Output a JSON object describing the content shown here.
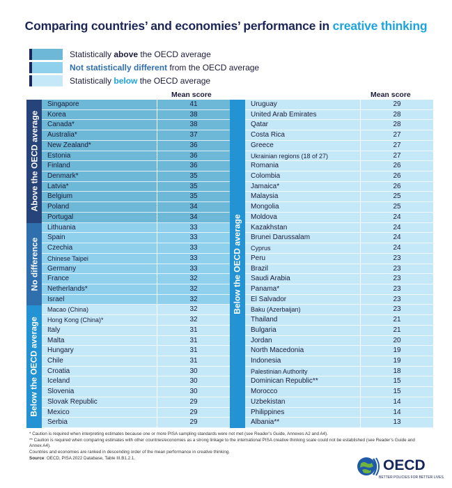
{
  "title": {
    "main": "Comparing countries’ and economies’ performance in ",
    "highlight": "creative thinking"
  },
  "legend": [
    {
      "pre": "Statistically ",
      "bold": "above",
      "post": " the OECD average",
      "color": "#6cb8d6"
    },
    {
      "pre": "",
      "bold": "Not statistically different",
      "post": " from the OECD average",
      "color": "#8fd0ec"
    },
    {
      "pre": "Statistically ",
      "bold": "below",
      "post": " the OECD average",
      "color": "#c4e8f7"
    }
  ],
  "column_header": "Mean score",
  "groups": {
    "above": "Above the OECD average",
    "nodiff": "No difference",
    "below": "Below the OECD average"
  },
  "chart_data": {
    "type": "table",
    "columns": [
      "Country/economy",
      "Mean score"
    ],
    "left": [
      {
        "name": "Singapore",
        "value": 41,
        "group": "above"
      },
      {
        "name": "Korea",
        "value": 38,
        "group": "above"
      },
      {
        "name": "Canada*",
        "value": 38,
        "group": "above"
      },
      {
        "name": "Australia*",
        "value": 37,
        "group": "above"
      },
      {
        "name": "New Zealand*",
        "value": 36,
        "group": "above"
      },
      {
        "name": "Estonia",
        "value": 36,
        "group": "above"
      },
      {
        "name": "Finland",
        "value": 36,
        "group": "above"
      },
      {
        "name": "Denmark*",
        "value": 35,
        "group": "above"
      },
      {
        "name": "Latvia*",
        "value": 35,
        "group": "above"
      },
      {
        "name": "Belgium",
        "value": 35,
        "group": "above"
      },
      {
        "name": "Poland",
        "value": 34,
        "group": "above"
      },
      {
        "name": "Portugal",
        "value": 34,
        "group": "above"
      },
      {
        "name": "Lithuania",
        "value": 33,
        "group": "nodiff"
      },
      {
        "name": "Spain",
        "value": 33,
        "group": "nodiff"
      },
      {
        "name": "Czechia",
        "value": 33,
        "group": "nodiff"
      },
      {
        "name": "Chinese Taipei",
        "value": 33,
        "group": "nodiff",
        "small": true
      },
      {
        "name": "Germany",
        "value": 33,
        "group": "nodiff"
      },
      {
        "name": "France",
        "value": 32,
        "group": "nodiff"
      },
      {
        "name": "Netherlands*",
        "value": 32,
        "group": "nodiff"
      },
      {
        "name": "Israel",
        "value": 32,
        "group": "nodiff"
      },
      {
        "name": "Macao (China)",
        "value": 32,
        "group": "below",
        "small": true
      },
      {
        "name": "Hong Kong (China)*",
        "value": 32,
        "group": "below",
        "small": true
      },
      {
        "name": "Italy",
        "value": 31,
        "group": "below"
      },
      {
        "name": "Malta",
        "value": 31,
        "group": "below"
      },
      {
        "name": "Hungary",
        "value": 31,
        "group": "below"
      },
      {
        "name": "Chile",
        "value": 31,
        "group": "below"
      },
      {
        "name": "Croatia",
        "value": 30,
        "group": "below"
      },
      {
        "name": "Iceland",
        "value": 30,
        "group": "below"
      },
      {
        "name": "Slovenia",
        "value": 30,
        "group": "below"
      },
      {
        "name": "Slovak Republic",
        "value": 29,
        "group": "below"
      },
      {
        "name": "Mexico",
        "value": 29,
        "group": "below"
      },
      {
        "name": "Serbia",
        "value": 29,
        "group": "below"
      }
    ],
    "right": [
      {
        "name": "Uruguay",
        "value": 29,
        "group": "below"
      },
      {
        "name": "United Arab Emirates",
        "value": 28,
        "group": "below"
      },
      {
        "name": "Qatar",
        "value": 28,
        "group": "below"
      },
      {
        "name": "Costa Rica",
        "value": 27,
        "group": "below"
      },
      {
        "name": "Greece",
        "value": 27,
        "group": "below"
      },
      {
        "name": "Ukrainian regions (18 of 27)",
        "value": 27,
        "group": "below",
        "small": true
      },
      {
        "name": "Romania",
        "value": 26,
        "group": "below"
      },
      {
        "name": "Colombia",
        "value": 26,
        "group": "below"
      },
      {
        "name": "Jamaica*",
        "value": 26,
        "group": "below"
      },
      {
        "name": "Malaysia",
        "value": 25,
        "group": "below"
      },
      {
        "name": "Mongolia",
        "value": 25,
        "group": "below"
      },
      {
        "name": "Moldova",
        "value": 24,
        "group": "below"
      },
      {
        "name": "Kazakhstan",
        "value": 24,
        "group": "below"
      },
      {
        "name": "Brunei Darussalam",
        "value": 24,
        "group": "below"
      },
      {
        "name": "Cyprus",
        "value": 24,
        "group": "below",
        "small": true
      },
      {
        "name": "Peru",
        "value": 23,
        "group": "below"
      },
      {
        "name": "Brazil",
        "value": 23,
        "group": "below"
      },
      {
        "name": "Saudi Arabia",
        "value": 23,
        "group": "below"
      },
      {
        "name": "Panama*",
        "value": 23,
        "group": "below"
      },
      {
        "name": "El Salvador",
        "value": 23,
        "group": "below"
      },
      {
        "name": "Baku (Azerbaijan)",
        "value": 23,
        "group": "below",
        "small": true
      },
      {
        "name": "Thailand",
        "value": 21,
        "group": "below"
      },
      {
        "name": "Bulgaria",
        "value": 21,
        "group": "below"
      },
      {
        "name": "Jordan",
        "value": 20,
        "group": "below"
      },
      {
        "name": "North Macedonia",
        "value": 19,
        "group": "below"
      },
      {
        "name": "Indonesia",
        "value": 19,
        "group": "below"
      },
      {
        "name": "Palestinian Authority",
        "value": 18,
        "group": "below",
        "small": true
      },
      {
        "name": "Dominican Republic**",
        "value": 15,
        "group": "below"
      },
      {
        "name": "Morocco",
        "value": 15,
        "group": "below"
      },
      {
        "name": "Uzbekistan",
        "value": 14,
        "group": "below"
      },
      {
        "name": "Philippines",
        "value": 14,
        "group": "below"
      },
      {
        "name": "Albania**",
        "value": 13,
        "group": "below"
      }
    ]
  },
  "notes": {
    "n1": "* Caution is required when interpreting estimates because one or more PISA sampling standards were not met (see Reader’s Guide, Annexes A2 and A4).",
    "n2": "** Caution is required when comparing estimates with other countries/economies as a strong linkage to the international PISA creative thinking scale could not be established (see Reader’s Guide and Annex A4).",
    "n3": "Countries and economies are ranked in descending order of the mean performance in creative thinking.",
    "source_label": "Source",
    "source_text": ": OECD, PISA 2022 Database, Table III.B1.2.1."
  },
  "logo": {
    "text": "OECD",
    "tagline": "BETTER POLICIES FOR BETTER LIVES"
  }
}
